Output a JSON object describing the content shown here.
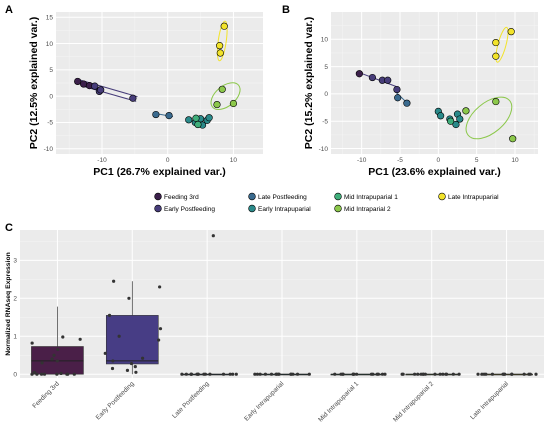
{
  "figure": {
    "panels": [
      "A",
      "B",
      "C"
    ],
    "stage_colors": {
      "Feeding 3rd": "#3b1f4a",
      "Early Postfeeding": "#473d7a",
      "Late Postfeeding": "#3a6a8e",
      "Early Intrapuparial": "#2a8a8a",
      "Mid Intrapuparial 1": "#3fae7a",
      "Mid Intraparial 2": "#8cc84b",
      "Late Intrapuparial": "#f2e32a"
    },
    "legend": {
      "row1": [
        "Feeding 3rd",
        "Late Postfeeding",
        "Mid Intrapuparial 1",
        "Late Intrapuparial"
      ],
      "row2": [
        "Early Postfeeding",
        "Early Intrapuparial",
        "Mid Intraparial 2"
      ]
    }
  },
  "chart_data": [
    {
      "panel": "A",
      "type": "scatter",
      "xlabel": "PC1 (26.7% explained var.)",
      "ylabel": "PC2 (12.5% explained var.)",
      "xlim": [
        -17,
        14.5
      ],
      "ylim": [
        -11,
        16
      ],
      "xticks": [
        -10,
        0,
        10
      ],
      "yticks": [
        -10,
        -5,
        0,
        5,
        10,
        15
      ],
      "grid": true,
      "series": [
        {
          "name": "Feeding 3rd",
          "points": [
            [
              -13.7,
              2.8
            ],
            [
              -12.8,
              2.3
            ],
            [
              -11.9,
              2.0
            ]
          ]
        },
        {
          "name": "Early Postfeeding",
          "points": [
            [
              -11.1,
              1.9
            ],
            [
              -10.4,
              0.9
            ],
            [
              -10.2,
              1.2
            ],
            [
              -5.3,
              -0.4
            ]
          ]
        },
        {
          "name": "Late Postfeeding",
          "points": [
            [
              -1.8,
              -3.5
            ],
            [
              0.2,
              -3.7
            ]
          ]
        },
        {
          "name": "Early Intrapuparial",
          "points": [
            [
              3.2,
              -4.5
            ],
            [
              4.2,
              -5.0
            ],
            [
              5.0,
              -4.3
            ],
            [
              5.3,
              -5.5
            ],
            [
              6.0,
              -4.6
            ],
            [
              6.3,
              -4.1
            ]
          ]
        },
        {
          "name": "Mid Intrapuparial 1",
          "points": [
            [
              4.3,
              -4.2
            ],
            [
              4.6,
              -5.4
            ]
          ]
        },
        {
          "name": "Mid Intraparial 2",
          "points": [
            [
              7.5,
              -1.6
            ],
            [
              8.3,
              1.3
            ],
            [
              10.0,
              -1.4
            ]
          ]
        },
        {
          "name": "Late Intrapuparial",
          "points": [
            [
              8.6,
              13.3
            ],
            [
              7.9,
              9.6
            ],
            [
              8.0,
              8.2
            ]
          ]
        }
      ]
    },
    {
      "panel": "B",
      "type": "scatter",
      "xlabel": "PC1 (23.6% explained var.)",
      "ylabel": "PC2 (15.2% explained var.)",
      "xlim": [
        -14,
        13
      ],
      "ylim": [
        -11,
        15
      ],
      "xticks": [
        -10,
        -5,
        0,
        5,
        10
      ],
      "yticks": [
        -10,
        -5,
        0,
        5,
        10
      ],
      "grid": true,
      "series": [
        {
          "name": "Feeding 3rd",
          "points": [
            [
              -10.3,
              3.7
            ]
          ]
        },
        {
          "name": "Early Postfeeding",
          "points": [
            [
              -8.6,
              3.0
            ],
            [
              -7.3,
              2.5
            ],
            [
              -6.6,
              2.5
            ],
            [
              -5.4,
              0.8
            ]
          ]
        },
        {
          "name": "Late Postfeeding",
          "points": [
            [
              -5.3,
              -0.7
            ],
            [
              -4.1,
              -1.7
            ]
          ]
        },
        {
          "name": "Early Intrapuparial",
          "points": [
            [
              0.0,
              -3.2
            ],
            [
              0.3,
              -4.0
            ],
            [
              1.5,
              -4.6
            ],
            [
              2.3,
              -5.6
            ],
            [
              2.5,
              -3.7
            ],
            [
              2.8,
              -4.6
            ]
          ]
        },
        {
          "name": "Mid Intrapuparial 1",
          "points": [
            [
              1.6,
              -5.0
            ]
          ]
        },
        {
          "name": "Mid Intraparial 2",
          "points": [
            [
              3.6,
              -3.1
            ],
            [
              7.5,
              -1.4
            ],
            [
              9.7,
              -8.2
            ]
          ]
        },
        {
          "name": "Late Intrapuparial",
          "points": [
            [
              7.5,
              9.4
            ],
            [
              7.5,
              6.9
            ],
            [
              9.5,
              11.4
            ]
          ]
        }
      ]
    },
    {
      "panel": "C",
      "type": "box",
      "xlabel": "",
      "ylabel": "Normalized RNAseq Expression",
      "ylim": [
        -0.1,
        3.8
      ],
      "yticks": [
        0,
        1,
        2,
        3
      ],
      "categories": [
        "Feeding 3rd",
        "Early Postfeeding",
        "Late Postfeeding",
        "Early Intrapuparial",
        "Mid Intrapuparial 1",
        "Mid Intrapuparial 2",
        "Late Intrapuparial"
      ],
      "boxes": [
        {
          "q1": 0.0,
          "median": 0.35,
          "q3": 0.73,
          "whisker_low": 0.0,
          "whisker_high": 1.78
        },
        {
          "q1": 0.27,
          "median": 0.35,
          "q3": 1.55,
          "whisker_low": 0.0,
          "whisker_high": 2.45
        },
        {
          "q1": 0.0,
          "median": 0.0,
          "q3": 0.0,
          "whisker_low": 0.0,
          "whisker_high": 0.0
        },
        {
          "q1": 0.0,
          "median": 0.0,
          "q3": 0.0,
          "whisker_low": 0.0,
          "whisker_high": 0.0
        },
        {
          "q1": 0.0,
          "median": 0.0,
          "q3": 0.0,
          "whisker_low": 0.0,
          "whisker_high": 0.0
        },
        {
          "q1": 0.0,
          "median": 0.0,
          "q3": 0.0,
          "whisker_low": 0.0,
          "whisker_high": 0.0
        },
        {
          "q1": 0.0,
          "median": 0.0,
          "q3": 0.0,
          "whisker_low": 0.0,
          "whisker_high": 0.0
        }
      ],
      "points": [
        [
          0.0,
          0.02,
          0.05,
          0.3,
          0.5,
          0.65,
          0.82,
          0.92,
          0.98,
          0.4,
          0.0,
          0.0,
          0.0,
          0.0,
          0.35,
          0.0,
          0.0,
          0.0
        ],
        [
          0.05,
          0.28,
          0.35,
          0.55,
          0.9,
          1.2,
          1.55,
          2.0,
          2.3,
          2.45,
          0.1,
          0.2,
          0.42,
          1.0,
          0.15
        ],
        [
          0.0,
          0.0,
          0.0,
          0.0,
          0.0,
          0.0,
          0.0,
          0.0,
          0.0,
          0.0,
          0.0,
          0.0,
          0.0,
          0.0,
          0.0,
          3.65
        ],
        [
          0.0,
          0.0,
          0.0,
          0.0,
          0.0,
          0.0,
          0.0,
          0.0,
          0.0,
          0.0,
          0.0,
          0.0,
          0.0,
          0.0
        ],
        [
          0.0,
          0.0,
          0.0,
          0.0,
          0.0,
          0.0,
          0.0,
          0.0,
          0.0,
          0.0,
          0.0,
          0.0,
          0.0,
          0.0
        ],
        [
          0.0,
          0.0,
          0.0,
          0.0,
          0.0,
          0.0,
          0.0,
          0.0,
          0.0,
          0.0,
          0.0,
          0.0,
          0.0,
          0.0,
          0.0
        ],
        [
          0.0,
          0.0,
          0.0,
          0.0,
          0.0,
          0.0,
          0.0,
          0.0,
          0.0,
          0.0,
          0.0,
          0.0,
          0.0,
          0.0
        ]
      ],
      "box_colors": [
        "#4a1f48",
        "#473d85",
        "#3a6a8e",
        "#2a8a8a",
        "#3fae7a",
        "#8cc84b",
        "#f2e32a"
      ],
      "grid": true
    }
  ]
}
